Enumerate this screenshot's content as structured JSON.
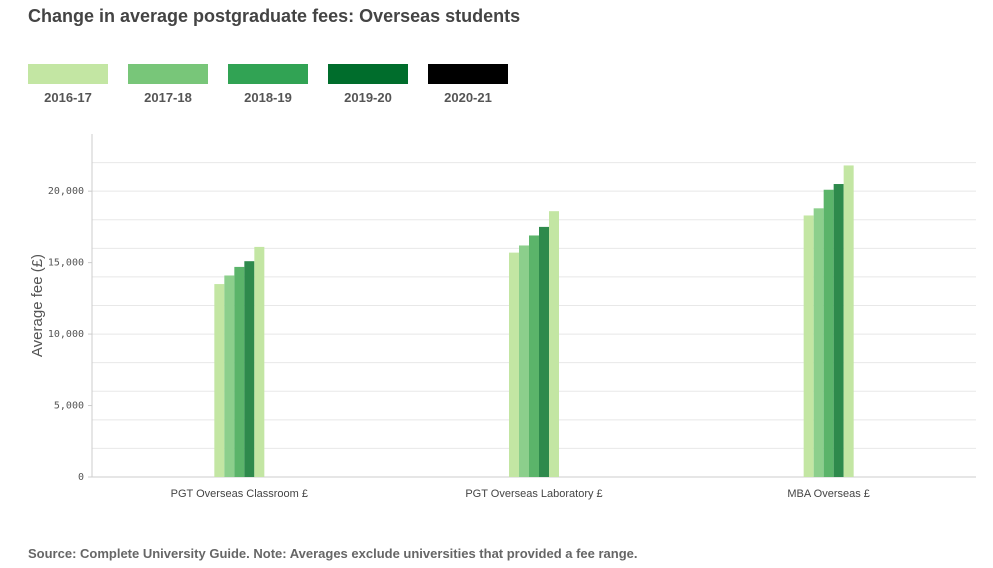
{
  "title": "Change in average postgraduate fees: Overseas students",
  "legend": [
    {
      "label": "2016-17",
      "color": "#c3e6a3"
    },
    {
      "label": "2017-18",
      "color": "#78c679"
    },
    {
      "label": "2018-19",
      "color": "#31a354"
    },
    {
      "label": "2019-20",
      "color": "#006d2c"
    },
    {
      "label": "2020-21",
      "color": "#000000"
    }
  ],
  "source": "Source: Complete University Guide. Note: Averages exclude universities that provided a fee range.",
  "chart_data": {
    "type": "bar",
    "categories": [
      "PGT Overseas Classroom £",
      "PGT Overseas Laboratory £",
      "MBA Overseas £"
    ],
    "series": [
      {
        "name": "2016-17",
        "color": "#c3e6a3",
        "values": [
          13500,
          15700,
          18300
        ]
      },
      {
        "name": "2017-18",
        "color": "#8ccf8c",
        "values": [
          14100,
          16200,
          18800
        ]
      },
      {
        "name": "2018-19",
        "color": "#5bb46a",
        "values": [
          14700,
          16900,
          20100
        ]
      },
      {
        "name": "2019-20",
        "color": "#2e8a4c",
        "values": [
          15100,
          17500,
          20500
        ]
      },
      {
        "name": "2020-21",
        "color": "#c3e6a3",
        "values": [
          16100,
          18600,
          21800
        ]
      }
    ],
    "ylabel": "Average fee (£)",
    "xlabel": "",
    "ylim": [
      0,
      24000
    ],
    "yticks": [
      0,
      5000,
      10000,
      15000,
      20000
    ],
    "ytick_labels": [
      "0",
      "5,000",
      "10,000",
      "15,000",
      "20,000"
    ],
    "grid": true
  }
}
